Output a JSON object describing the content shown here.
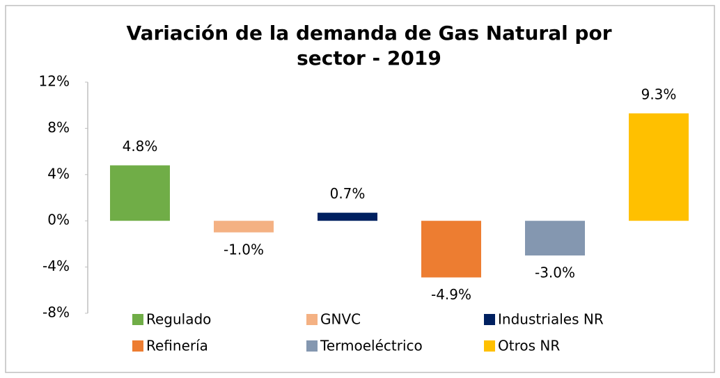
{
  "chart_data": {
    "type": "bar",
    "title": "Variación de la demanda de Gas Natural por sector - 2019",
    "series": [
      {
        "name": "Regulado",
        "color": "#70ad47",
        "values": [
          4.8
        ],
        "value_labels": [
          "4.8%"
        ]
      },
      {
        "name": "GNVC",
        "color": "#f4b183",
        "values": [
          -1.0
        ],
        "value_labels": [
          "-1.0%"
        ]
      },
      {
        "name": "Industriales  NR",
        "color": "#002060",
        "values": [
          0.7
        ],
        "value_labels": [
          "0.7%"
        ]
      },
      {
        "name": "Refinería",
        "color": "#ed7d31",
        "values": [
          -4.9
        ],
        "value_labels": [
          "-4.9%"
        ]
      },
      {
        "name": "Termoeléctrico",
        "color": "#8497b0",
        "values": [
          -3.0
        ],
        "value_labels": [
          "-3.0%"
        ]
      },
      {
        "name": "Otros NR",
        "color": "#ffc000",
        "values": [
          9.3
        ],
        "value_labels": [
          "9.3%"
        ]
      }
    ],
    "ylim": [
      -8,
      12
    ],
    "yticks": [
      {
        "value": -8,
        "label": "-8%"
      },
      {
        "value": -4,
        "label": "-4%"
      },
      {
        "value": 0,
        "label": "0%"
      },
      {
        "value": 4,
        "label": "4%"
      },
      {
        "value": 8,
        "label": "8%"
      },
      {
        "value": 12,
        "label": "12%"
      }
    ],
    "grid": false,
    "legend": "bottom"
  }
}
